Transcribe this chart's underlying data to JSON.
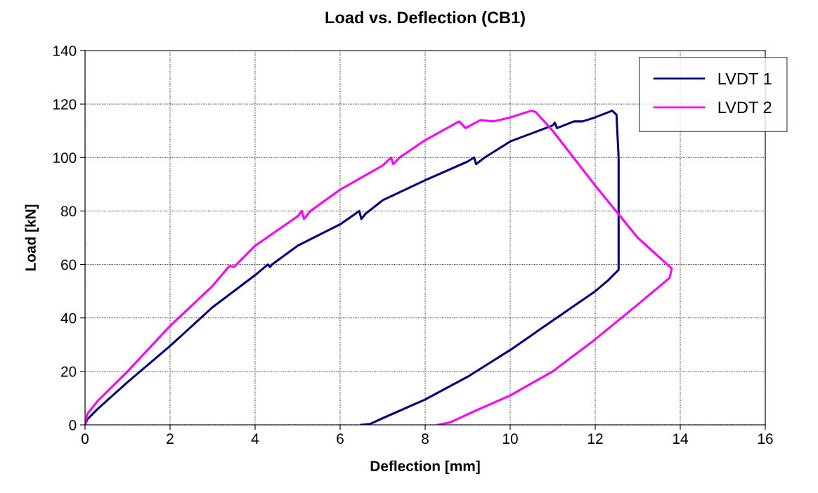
{
  "chart_data": {
    "type": "line",
    "title": "Load vs. Deflection (CB1)",
    "xlabel": "Deflection [mm]",
    "ylabel": "Load [kN]",
    "xlim": [
      0,
      16
    ],
    "xticks": [
      0,
      2,
      4,
      6,
      8,
      10,
      12,
      14,
      16
    ],
    "ylim": [
      0,
      140
    ],
    "yticks": [
      0,
      20,
      40,
      60,
      80,
      100,
      120,
      140
    ],
    "grid": true,
    "legend": "top right",
    "marker": "none",
    "line_style": "solid",
    "series": [
      {
        "name": "LVDT 1",
        "color": "#000080",
        "x": [
          0,
          0.05,
          0.3,
          1,
          2,
          3,
          4,
          4.3,
          4.35,
          4.4,
          5,
          6,
          6.45,
          6.5,
          6.6,
          7,
          8,
          9,
          9.15,
          9.2,
          9.4,
          10,
          11,
          11.05,
          11.1,
          11.5,
          11.7,
          12,
          12.4,
          12.5,
          12.55,
          12.55,
          12.3,
          12,
          11,
          10,
          9,
          8,
          7,
          6.7,
          6.5
        ],
        "values": [
          0,
          2,
          6,
          16,
          29.5,
          44,
          56,
          60,
          59,
          60,
          67,
          75,
          80,
          77,
          79,
          84,
          91.5,
          98.5,
          100,
          97.5,
          100,
          106,
          112,
          113,
          111,
          113.5,
          113.5,
          115,
          117.5,
          116,
          100,
          58,
          54,
          50,
          39,
          28,
          18,
          9.5,
          2.5,
          0.3,
          0
        ]
      },
      {
        "name": "LVDT 2",
        "color": "#ff00ff",
        "x": [
          0,
          0.05,
          0.3,
          1,
          2,
          3,
          3.4,
          3.5,
          4,
          5,
          5.1,
          5.15,
          5.3,
          6,
          7,
          7.2,
          7.25,
          7.4,
          8,
          8.8,
          8.95,
          9.3,
          9.6,
          10,
          10.5,
          10.6,
          11,
          12,
          13,
          13.8,
          13.75,
          13,
          12,
          11,
          10,
          9,
          8.6,
          8.3
        ],
        "values": [
          0,
          4,
          9,
          20,
          37,
          52,
          59.5,
          59,
          67,
          78,
          80,
          77,
          80,
          88,
          97,
          100,
          97.5,
          100,
          106.5,
          113.5,
          111,
          114,
          113.5,
          115,
          117.5,
          117,
          110,
          89.5,
          70,
          58.5,
          55,
          45,
          32,
          20,
          11,
          4,
          1,
          0
        ]
      }
    ]
  }
}
